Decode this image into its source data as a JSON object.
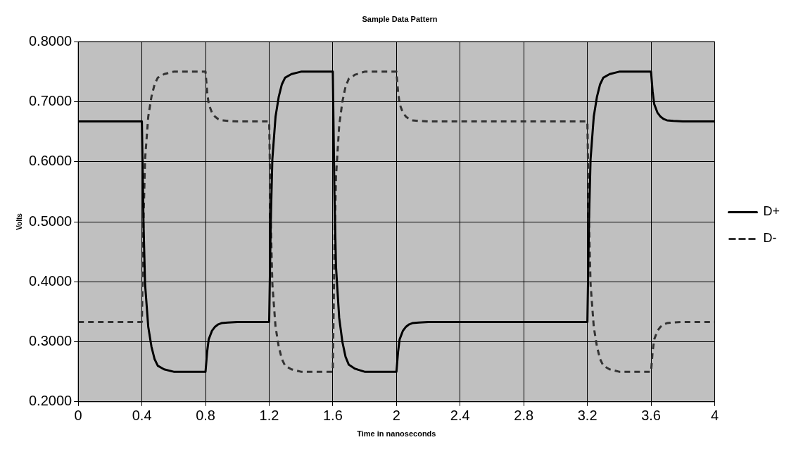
{
  "chart_data": {
    "type": "line",
    "title": "Sample Data Pattern",
    "xlabel": "Time in nanoseconds",
    "ylabel": "Volts",
    "x": [
      0,
      0.4,
      0.41,
      0.42,
      0.44,
      0.46,
      0.48,
      0.5,
      0.54,
      0.6,
      0.8,
      0.81,
      0.82,
      0.84,
      0.86,
      0.88,
      0.9,
      0.94,
      1.0,
      1.2,
      1.21,
      1.22,
      1.24,
      1.26,
      1.28,
      1.3,
      1.34,
      1.4,
      1.6,
      1.61,
      1.62,
      1.64,
      1.66,
      1.68,
      1.7,
      1.74,
      1.8,
      2.0,
      2.01,
      2.02,
      2.04,
      2.06,
      2.08,
      2.1,
      2.14,
      2.2,
      3.2,
      3.21,
      3.22,
      3.24,
      3.26,
      3.28,
      3.3,
      3.34,
      3.4,
      3.6,
      3.61,
      3.62,
      3.64,
      3.66,
      3.68,
      3.7,
      3.74,
      3.8,
      4.0
    ],
    "series": [
      {
        "name": "D+",
        "color": "#000000",
        "line_style": "solid",
        "values": [
          0.667,
          0.667,
          0.5,
          0.396,
          0.325,
          0.292,
          0.271,
          0.26,
          0.254,
          0.25,
          0.25,
          0.283,
          0.304,
          0.318,
          0.325,
          0.329,
          0.331,
          0.332,
          0.333,
          0.333,
          0.5,
          0.604,
          0.675,
          0.708,
          0.729,
          0.74,
          0.746,
          0.75,
          0.75,
          0.55,
          0.425,
          0.34,
          0.3,
          0.275,
          0.262,
          0.255,
          0.25,
          0.25,
          0.283,
          0.304,
          0.318,
          0.325,
          0.329,
          0.331,
          0.332,
          0.333,
          0.333,
          0.5,
          0.604,
          0.675,
          0.708,
          0.729,
          0.74,
          0.746,
          0.75,
          0.75,
          0.717,
          0.696,
          0.682,
          0.675,
          0.671,
          0.669,
          0.668,
          0.667,
          0.667
        ]
      },
      {
        "name": "D-",
        "color": "#333333",
        "line_style": "dashed",
        "values": [
          0.333,
          0.333,
          0.5,
          0.604,
          0.675,
          0.708,
          0.729,
          0.74,
          0.746,
          0.75,
          0.75,
          0.717,
          0.696,
          0.682,
          0.675,
          0.671,
          0.669,
          0.668,
          0.667,
          0.667,
          0.5,
          0.396,
          0.325,
          0.292,
          0.271,
          0.26,
          0.254,
          0.25,
          0.25,
          0.45,
          0.575,
          0.66,
          0.7,
          0.725,
          0.738,
          0.745,
          0.75,
          0.75,
          0.717,
          0.696,
          0.682,
          0.675,
          0.671,
          0.669,
          0.668,
          0.667,
          0.667,
          0.5,
          0.396,
          0.325,
          0.292,
          0.271,
          0.26,
          0.254,
          0.25,
          0.25,
          0.283,
          0.304,
          0.318,
          0.325,
          0.329,
          0.331,
          0.332,
          0.333,
          0.333
        ]
      }
    ],
    "xlim": [
      0,
      4
    ],
    "xticks": [
      0,
      0.4,
      0.8,
      1.2,
      1.6,
      2,
      2.4,
      2.8,
      3.2,
      3.6,
      4
    ],
    "ylim": [
      0.2,
      0.8
    ],
    "yticks": [
      {
        "value": 0.2,
        "label": "0.2000"
      },
      {
        "value": 0.3,
        "label": "0.3000"
      },
      {
        "value": 0.4,
        "label": "0.4000"
      },
      {
        "value": 0.5,
        "label": "0.5000"
      },
      {
        "value": 0.6,
        "label": "0.6000"
      },
      {
        "value": 0.7,
        "label": "0.7000"
      },
      {
        "value": 0.8,
        "label": "0.8000"
      }
    ],
    "grid": true,
    "legend": "right",
    "marker": "none"
  }
}
